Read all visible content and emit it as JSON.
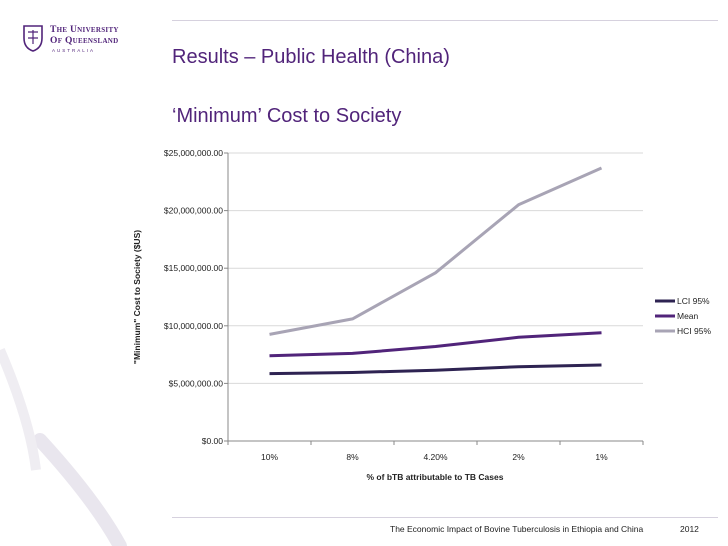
{
  "logo": {
    "line1": "The University",
    "line2": "Of Queensland",
    "line3": "AUSTRALIA"
  },
  "slide": {
    "title": "Results – Public Health (China)",
    "subtitle": "‘Minimum’ Cost to Society",
    "footer": "The Economic Impact of Bovine Tuberculosis in Ethiopia and China",
    "year": "2012"
  },
  "colors": {
    "brand": "#51247a",
    "lci": "#2e2352",
    "mean": "#51247a",
    "hci": "#a8a4b5",
    "gridline": "#d9d9d9"
  },
  "chart_data": {
    "type": "line",
    "title": "",
    "xlabel": "% of bTB attributable to TB Cases",
    "ylabel": "\"Minimum\" Cost to Society ($US)",
    "categories": [
      "10%",
      "8%",
      "4.20%",
      "2%",
      "1%"
    ],
    "ylim": [
      0,
      25000000
    ],
    "yticks": [
      0,
      5000000,
      10000000,
      15000000,
      20000000,
      25000000
    ],
    "ytick_labels": [
      "$0.00",
      "$5,000,000.00",
      "$10,000,000.00",
      "$15,000,000.00",
      "$20,000,000.00",
      "$25,000,000.00"
    ],
    "grid": true,
    "legend_position": "right",
    "series": [
      {
        "name": "LCI 95%",
        "color_key": "lci",
        "values": [
          5850000,
          5950000,
          6150000,
          6450000,
          6600000
        ]
      },
      {
        "name": "Mean",
        "color_key": "mean",
        "values": [
          7400000,
          7600000,
          8200000,
          9000000,
          9400000
        ]
      },
      {
        "name": "HCI 95%",
        "color_key": "hci",
        "values": [
          9250000,
          10600000,
          14600000,
          20500000,
          23700000
        ]
      }
    ]
  }
}
